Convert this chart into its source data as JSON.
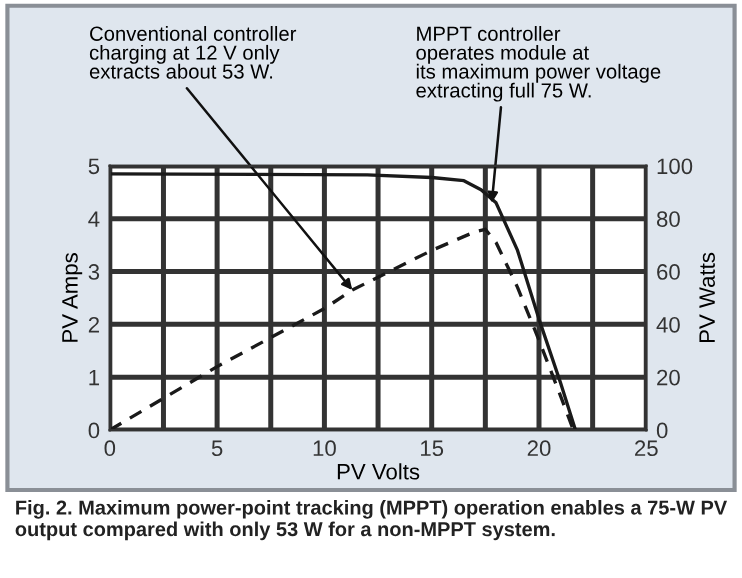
{
  "chart_data": {
    "type": "line",
    "xlabel": "PV Volts",
    "ylabel": "PV Amps",
    "y2label": "PV Watts",
    "series": [
      {
        "color": "#1a1a1a",
        "line_style": "solid",
        "x": [
          0,
          12,
          15,
          16.5,
          17.3,
          18,
          19,
          20,
          21,
          21.7
        ],
        "values": [
          4.85,
          4.83,
          4.78,
          4.72,
          4.55,
          4.3,
          3.4,
          2.1,
          0.9,
          0
        ]
      },
      {
        "color": "#1a1a1a",
        "line_style": "dashed",
        "axis": "y2",
        "x": [
          0,
          5,
          10,
          11.3,
          15,
          17,
          17.5,
          18,
          19,
          20,
          21,
          21.6
        ],
        "values": [
          0,
          24,
          46,
          53,
          68,
          75,
          76,
          71,
          54,
          34,
          13,
          0
        ]
      }
    ],
    "xlim": [
      0,
      25
    ],
    "xticks": [
      0,
      {
        "value": 2.5,
        "label": null
      },
      5,
      {
        "value": 7.5,
        "label": null
      },
      10,
      {
        "value": 12.5,
        "label": null
      },
      15,
      {
        "value": 17.5,
        "label": null
      },
      20,
      {
        "value": 22.5,
        "label": null
      },
      25
    ],
    "ylim": [
      0,
      5
    ],
    "yticks": [
      0,
      1,
      2,
      3,
      4,
      5
    ],
    "y2lim": [
      0,
      100
    ],
    "y2ticks": [
      0,
      20,
      40,
      60,
      80,
      100
    ],
    "grid": true,
    "annotations": [
      {
        "text": "Conventional controller\ncharging at 12 V only\nextracts about 53 W.",
        "x": 11.3,
        "y": 2.65
      },
      {
        "text": "MPPT controller\noperates module at\nits maximum power voltage\nextracting full 75 W.",
        "x": 17.8,
        "y": 4.3
      },
      "Fig. 2. Maximum power-point tracking (MPPT) operation enables a 75-W PV output compared with only 53 W for a non-MPPT system."
    ]
  }
}
